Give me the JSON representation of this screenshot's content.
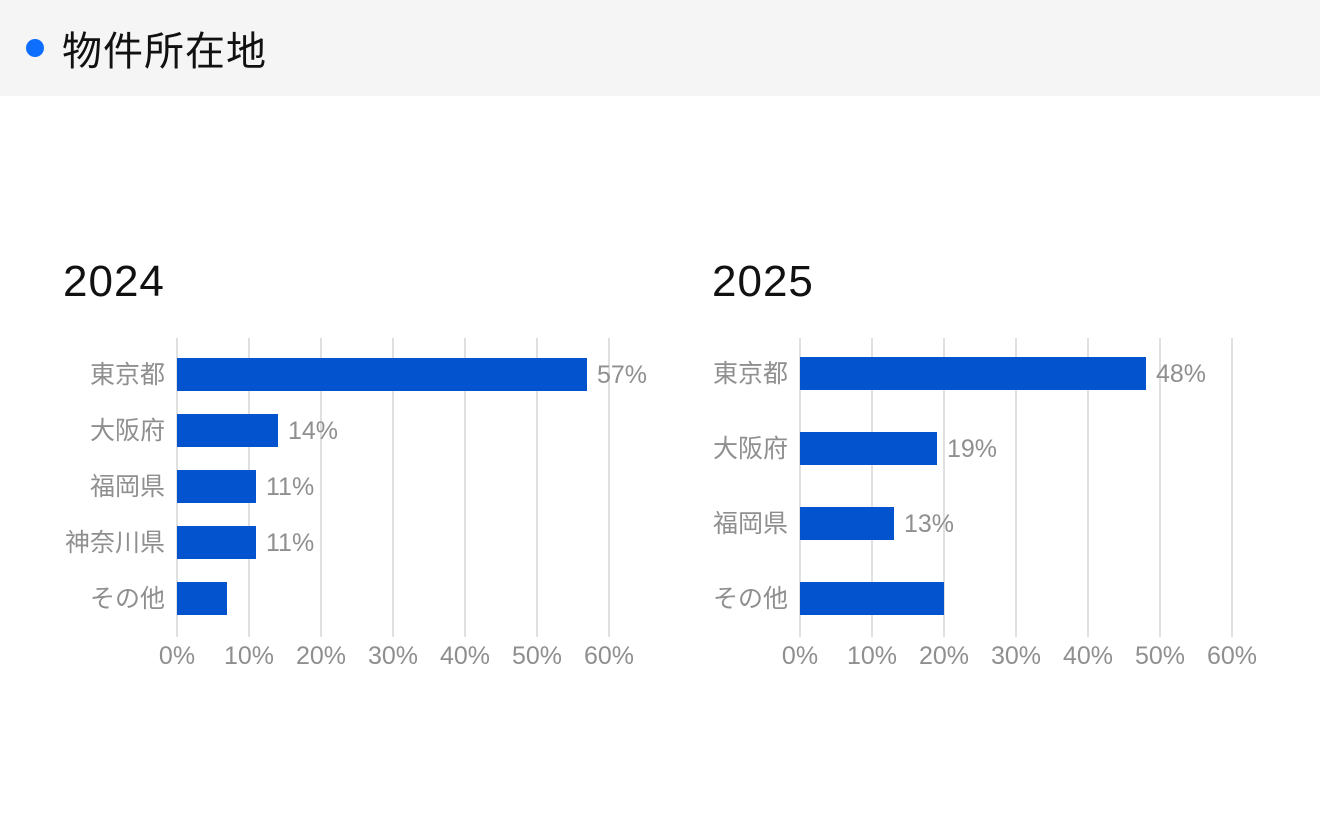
{
  "header": {
    "title": "物件所在地",
    "bullet_color": "#0d6efd",
    "background_color": "#f5f5f5"
  },
  "colors": {
    "bar": "#0453ce",
    "gridline": "#e0e0e0",
    "label_gray": "#8f8f8f",
    "title_black": "#111111"
  },
  "chart_data": [
    {
      "type": "bar",
      "orientation": "horizontal",
      "title": "2024",
      "categories": [
        "東京都",
        "大阪府",
        "福岡県",
        "神奈川県",
        "その他"
      ],
      "values": [
        57,
        14,
        11,
        11,
        7
      ],
      "value_labels": [
        "57%",
        "14%",
        "11%",
        "11%",
        ""
      ],
      "x_ticks": [
        "0%",
        "10%",
        "20%",
        "30%",
        "40%",
        "50%",
        "60%"
      ],
      "xlim": [
        0,
        60
      ],
      "grid": true,
      "legend": "none"
    },
    {
      "type": "bar",
      "orientation": "horizontal",
      "title": "2025",
      "categories": [
        "東京都",
        "大阪府",
        "福岡県",
        "その他"
      ],
      "values": [
        48,
        19,
        13,
        20
      ],
      "value_labels": [
        "48%",
        "19%",
        "13%",
        ""
      ],
      "x_ticks": [
        "0%",
        "10%",
        "20%",
        "30%",
        "40%",
        "50%",
        "60%"
      ],
      "xlim": [
        0,
        60
      ],
      "grid": true,
      "legend": "none"
    }
  ]
}
